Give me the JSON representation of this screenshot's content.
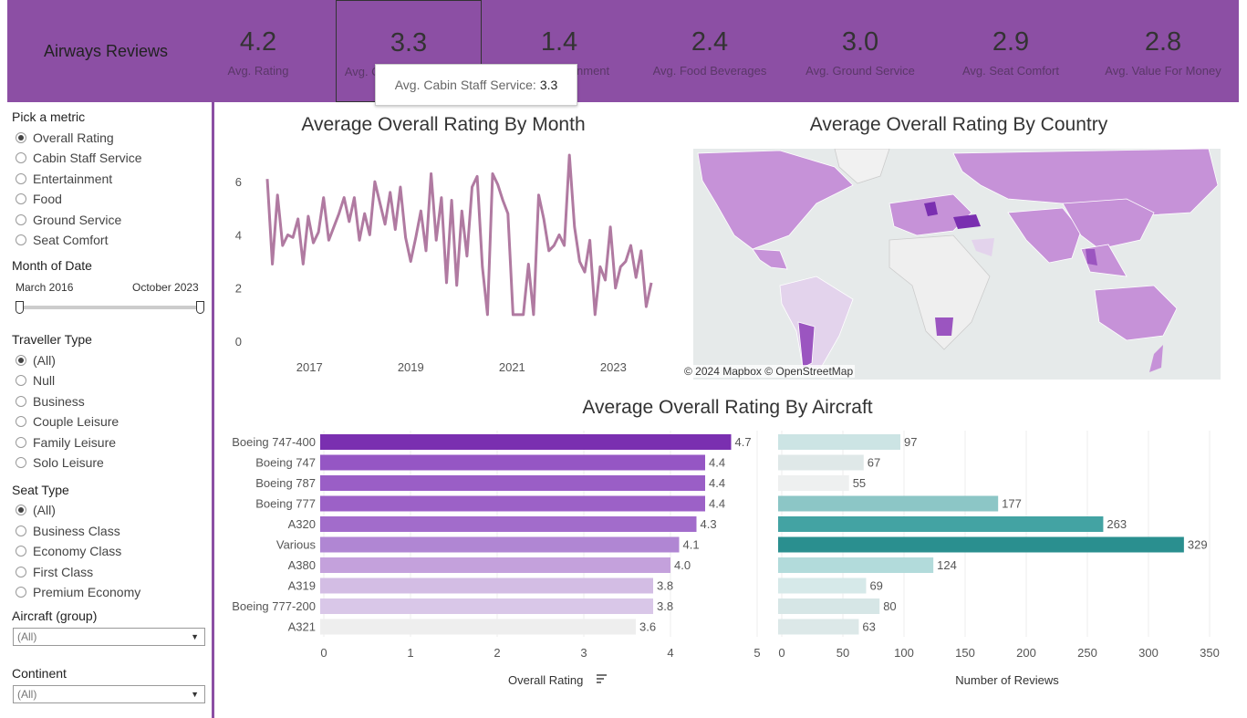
{
  "header": {
    "title": "Airways Reviews",
    "kpis": [
      {
        "value": "4.2",
        "label": "Avg. Rating"
      },
      {
        "value": "3.3",
        "label": "Avg. Cabin Staff Service"
      },
      {
        "value": "1.4",
        "label": "Avg. Entertainment"
      },
      {
        "value": "2.4",
        "label": "Avg. Food Beverages"
      },
      {
        "value": "3.0",
        "label": "Avg. Ground Service"
      },
      {
        "value": "2.9",
        "label": "Avg. Seat Comfort"
      },
      {
        "value": "2.8",
        "label": "Avg. Value For Money"
      }
    ],
    "tooltip": {
      "label": "Avg. Cabin Staff Service:",
      "value": "3.3"
    }
  },
  "sidebar": {
    "metric": {
      "label": "Pick a metric",
      "options": [
        "Overall Rating",
        "Cabin Staff Service",
        "Entertainment",
        "Food",
        "Ground Service",
        "Seat Comfort"
      ],
      "selected": "Overall Rating"
    },
    "date": {
      "label": "Month of Date",
      "start": "March 2016",
      "end": "October 2023"
    },
    "traveller": {
      "label": "Traveller Type",
      "options": [
        "(All)",
        "Null",
        "Business",
        "Couple Leisure",
        "Family Leisure",
        "Solo Leisure"
      ],
      "selected": "(All)"
    },
    "seat": {
      "label": "Seat Type",
      "options": [
        "(All)",
        "Business Class",
        "Economy Class",
        "First Class",
        "Premium Economy"
      ],
      "selected": "(All)"
    },
    "aircraft": {
      "label": "Aircraft (group)",
      "value": "(All)"
    },
    "continent": {
      "label": "Continent",
      "value": "(All)"
    }
  },
  "month_chart": {
    "title": "Average Overall Rating By Month"
  },
  "map": {
    "title": "Average Overall Rating By Country",
    "attribution": "© 2024 Mapbox  © OpenStreetMap"
  },
  "aircraft_chart": {
    "title": "Average Overall Rating By Aircraft",
    "rating_axis_label": "Overall Rating",
    "reviews_axis_label": "Number of Reviews"
  },
  "chart_data": [
    {
      "type": "line",
      "title": "Average Overall Rating By Month",
      "x_ticks": [
        "2017",
        "2019",
        "2021",
        "2023"
      ],
      "y_ticks": [
        0,
        2,
        4,
        6
      ],
      "ylim": [
        0,
        7
      ],
      "x_range": [
        "March 2016",
        "October 2023"
      ],
      "color": "#b07aa1",
      "values": [
        6.1,
        2.9,
        5.5,
        3.6,
        4.0,
        3.9,
        4.6,
        2.9,
        4.7,
        3.7,
        4.1,
        5.4,
        3.8,
        4.3,
        4.8,
        5.4,
        4.5,
        5.4,
        3.8,
        4.8,
        4.0,
        6.0,
        5.2,
        4.4,
        5.6,
        4.2,
        5.8,
        3.9,
        3.0,
        3.9,
        4.9,
        3.4,
        6.3,
        3.8,
        5.4,
        2.2,
        5.3,
        2.1,
        4.9,
        3.2,
        5.8,
        6.2,
        2.8,
        1.0,
        6.3,
        5.9,
        5.3,
        4.8,
        1.0,
        1.0,
        1.0,
        2.9,
        1.0,
        5.5,
        4.6,
        3.4,
        3.6,
        4.0,
        3.6,
        7.0,
        4.3,
        3.0,
        2.6,
        3.8,
        1.0,
        2.8,
        2.3,
        4.3,
        2.0,
        2.8,
        3.0,
        3.6,
        2.4,
        3.4,
        1.3,
        2.2
      ]
    },
    {
      "type": "bar",
      "title": "Average Overall Rating By Aircraft",
      "categories": [
        "Boeing 747-400",
        "Boeing 747",
        "Boeing 787",
        "Boeing 777",
        "A320",
        "Various",
        "A380",
        "A319",
        "Boeing 777-200",
        "A321"
      ],
      "series": [
        {
          "name": "Overall Rating",
          "values": [
            4.7,
            4.4,
            4.4,
            4.4,
            4.3,
            4.1,
            4.0,
            3.8,
            3.8,
            3.6
          ]
        }
      ],
      "xlabel": "Overall Rating",
      "x_ticks": [
        0,
        1,
        2,
        3,
        4,
        5
      ],
      "xlim": [
        0,
        5
      ],
      "grid": true,
      "colors": [
        "#7a2fb0",
        "#9556c4",
        "#9a5ec6",
        "#9c61c7",
        "#a26ccb",
        "#b086d3",
        "#c4a1dc",
        "#d3bde4",
        "#d9c7e8",
        "#eeeeee"
      ]
    },
    {
      "type": "bar",
      "title": "Number of Reviews",
      "categories": [
        "Boeing 747-400",
        "Boeing 747",
        "Boeing 787",
        "Boeing 777",
        "A320",
        "Various",
        "A380",
        "A319",
        "Boeing 777-200",
        "A321"
      ],
      "series": [
        {
          "name": "Number of Reviews",
          "values": [
            97,
            67,
            55,
            177,
            263,
            329,
            124,
            69,
            80,
            63
          ]
        }
      ],
      "xlabel": "Number of Reviews",
      "x_ticks": [
        0,
        50,
        100,
        150,
        200,
        250,
        300,
        350
      ],
      "xlim": [
        0,
        350
      ],
      "grid": true,
      "colors": [
        "#cce4e4",
        "#dfe8e8",
        "#eef0f0",
        "#8cc6c6",
        "#43a3a3",
        "#2a8f8f",
        "#b2dbdb",
        "#d6e9e9",
        "#d6e6e6",
        "#dce8e8"
      ]
    }
  ]
}
